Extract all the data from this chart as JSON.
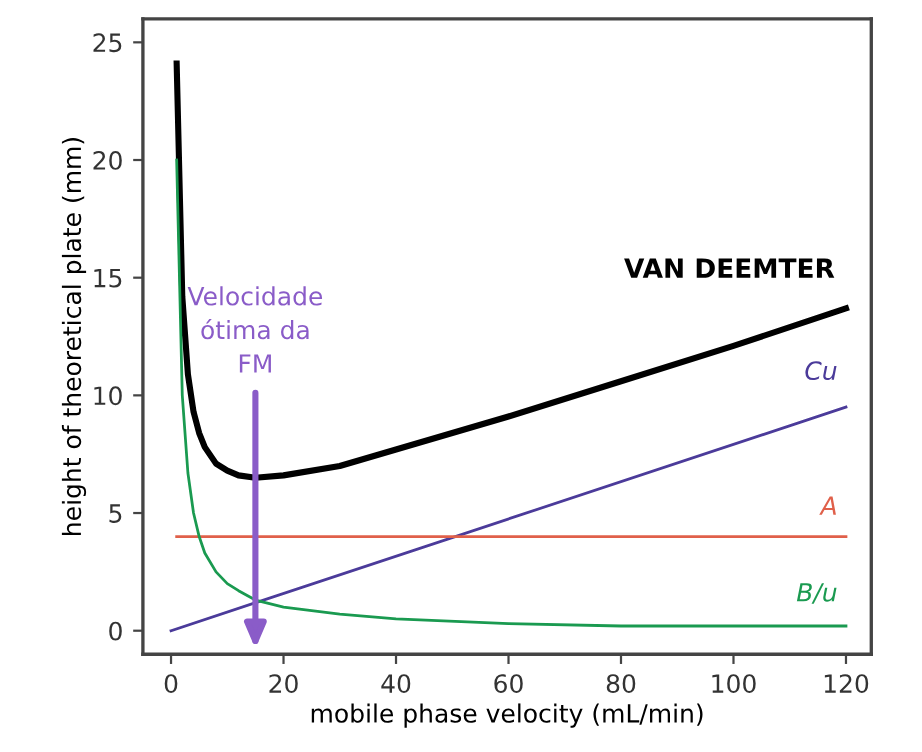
{
  "chart_data": {
    "type": "line",
    "xlabel": "mobile phase velocity (mL/min)",
    "ylabel": "height of theoretical plate (mm)",
    "xlim": [
      -5,
      124.5
    ],
    "ylim": [
      -1,
      26
    ],
    "xticks": [
      0,
      20,
      40,
      60,
      80,
      100,
      120
    ],
    "yticks": [
      0,
      5,
      10,
      15,
      20,
      25
    ],
    "grid": false,
    "legend": false,
    "marker": "none",
    "line_style": "solid",
    "series": [
      {
        "name": "VAN DEEMTER",
        "color": "#000000",
        "x": [
          1,
          2,
          3,
          4,
          5,
          6,
          8,
          10,
          12,
          15,
          20,
          30,
          40,
          60,
          80,
          100,
          120
        ],
        "values": [
          24.1,
          14.2,
          10.9,
          9.3,
          8.4,
          7.8,
          7.1,
          6.8,
          6.6,
          6.5,
          6.6,
          7.0,
          7.7,
          9.1,
          10.6,
          12.1,
          13.7
        ]
      },
      {
        "name": "Cu",
        "color": "#4b3b9a",
        "x": [
          0,
          120
        ],
        "values": [
          0,
          9.5
        ]
      },
      {
        "name": "A",
        "color": "#e0604a",
        "x": [
          1,
          120
        ],
        "values": [
          4,
          4
        ]
      },
      {
        "name": "B/u",
        "color": "#1a9a50",
        "x": [
          1,
          2,
          3,
          4,
          5,
          6,
          8,
          10,
          12,
          15,
          20,
          30,
          40,
          60,
          80,
          100,
          120
        ],
        "values": [
          20,
          10,
          6.7,
          5,
          4,
          3.3,
          2.5,
          2,
          1.7,
          1.3,
          1,
          0.7,
          0.5,
          0.3,
          0.2,
          0.2,
          0.2
        ]
      }
    ],
    "annotations": [
      "Velocidade\nótima da\nFM"
    ]
  }
}
